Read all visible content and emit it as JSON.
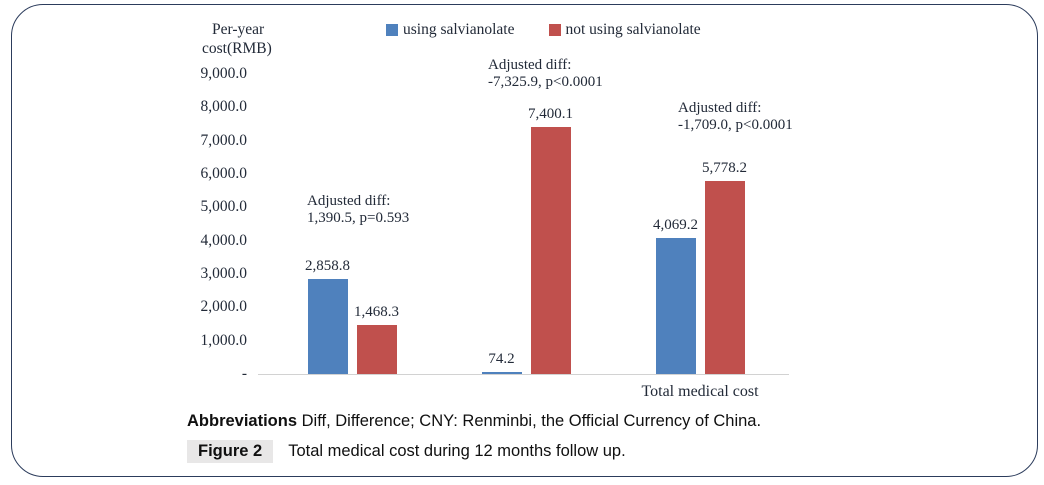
{
  "chart": {
    "axis_title_line1": "Per-year",
    "axis_title_line2": "cost(RMB)"
  },
  "chart_data": {
    "type": "bar",
    "title": "",
    "ylabel": "Per-year cost(RMB)",
    "xlabel": "",
    "ylim": [
      0,
      9000
    ],
    "grid": false,
    "legend_position": "top-center",
    "categories": [
      "",
      "",
      "Total medical cost"
    ],
    "series": [
      {
        "name": "using salvianolate",
        "color": "#4f81bd",
        "values": [
          2858.8,
          74.2,
          4069.2
        ],
        "value_labels": [
          "2,858.8",
          "74.2",
          "4,069.2"
        ]
      },
      {
        "name": "not using salvianolate",
        "color": "#c0504d",
        "values": [
          1468.3,
          7400.1,
          5778.2
        ],
        "value_labels": [
          "1,468.3",
          "7,400.1",
          "5,778.2"
        ]
      }
    ],
    "annotations": [
      {
        "line1": "Adjusted diff:",
        "line2": "1,390.5, p=0.593"
      },
      {
        "line1": "Adjusted diff:",
        "line2": "-7,325.9, p<0.0001"
      },
      {
        "line1": "Adjusted diff:",
        "line2": "-1,709.0, p<0.0001"
      }
    ],
    "y_ticks": [
      {
        "label": "9,000.0",
        "value": 9000
      },
      {
        "label": "8,000.0",
        "value": 8000
      },
      {
        "label": "7,000.0",
        "value": 7000
      },
      {
        "label": "6,000.0",
        "value": 6000
      },
      {
        "label": "5,000.0",
        "value": 5000
      },
      {
        "label": "4,000.0",
        "value": 4000
      },
      {
        "label": "3,000.0",
        "value": 3000
      },
      {
        "label": "2,000.0",
        "value": 2000
      },
      {
        "label": "1,000.0",
        "value": 1000
      },
      {
        "label": "-",
        "value": 0
      }
    ]
  },
  "caption": {
    "abbrev_bold": "Abbreviations",
    "abbrev_text": " Diff, Difference; CNY: Renminbi, the Official Currency of China.",
    "figure_label": "Figure 2",
    "figure_text": "Total medical cost during 12 months follow up."
  }
}
